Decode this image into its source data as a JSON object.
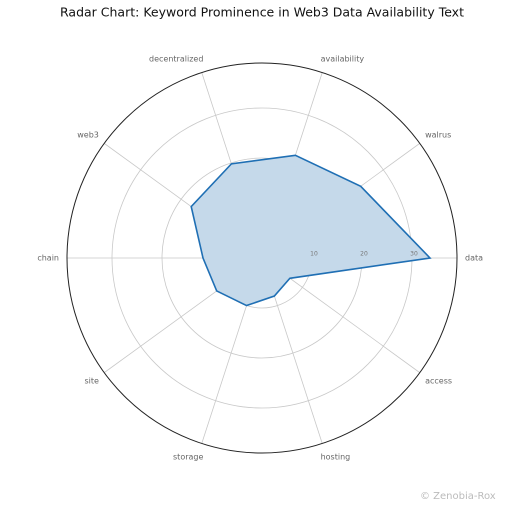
{
  "chart_data": {
    "type": "radar",
    "title": "Radar Chart: Keyword Prominence in Web3 Data Availability Text",
    "categories": [
      "data",
      "walrus",
      "availability",
      "decentralized",
      "web3",
      "chain",
      "site",
      "storage",
      "hosting",
      "access"
    ],
    "values": [
      33.6,
      24.4,
      21.6,
      19.8,
      17.5,
      11.8,
      11.2,
      10,
      8,
      6.9
    ],
    "color": "#1f6fb4",
    "fill": "#c5d9ea",
    "ylim": [
      0,
      39
    ],
    "yticks": [
      10,
      20,
      30
    ],
    "grid": true,
    "watermark": "© Zenobia-Rox"
  }
}
